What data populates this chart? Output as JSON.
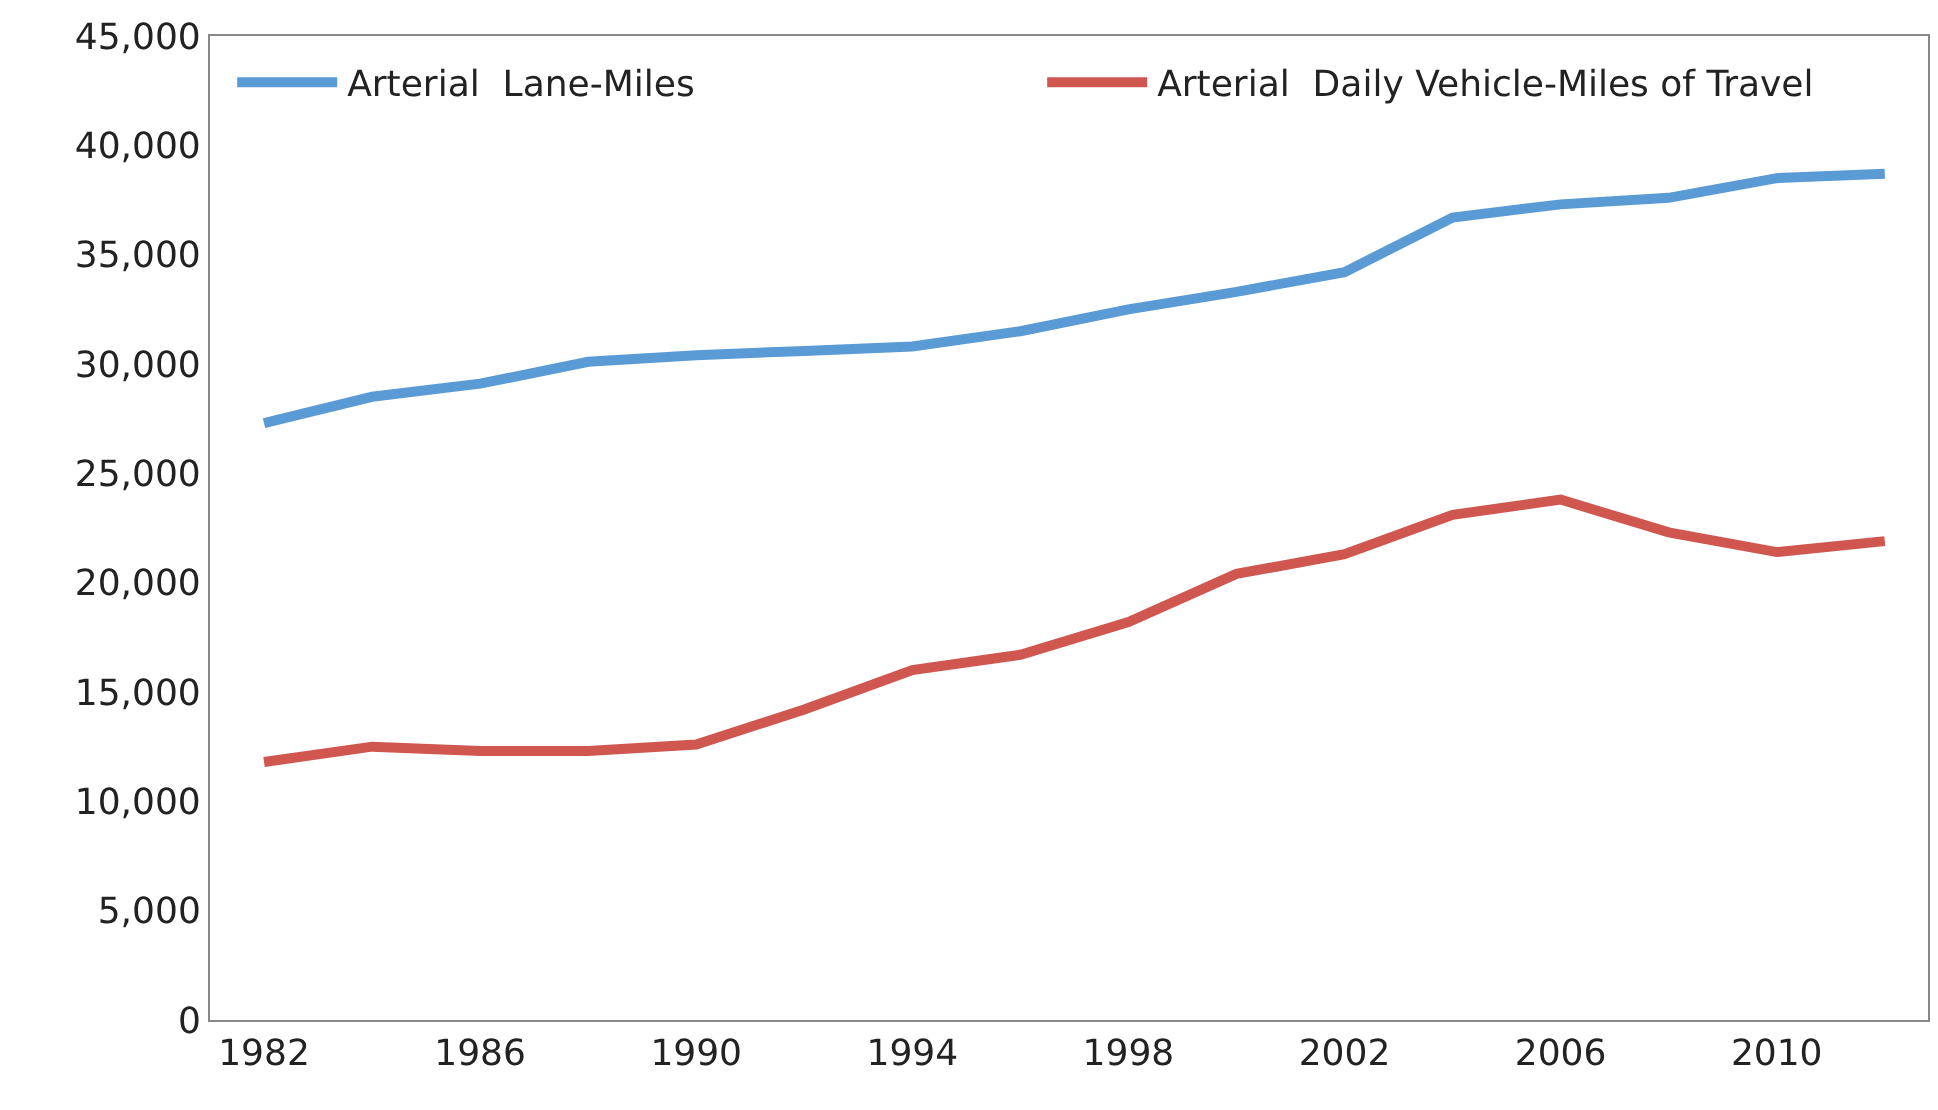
{
  "chart_data": {
    "type": "line",
    "x": [
      1982,
      1984,
      1986,
      1988,
      1990,
      1992,
      1994,
      1996,
      1998,
      2000,
      2002,
      2004,
      2006,
      2008,
      2010,
      2012
    ],
    "series": [
      {
        "name": "Arterial  Lane-Miles",
        "color": "#5b9bd5",
        "values": [
          27300,
          28500,
          29100,
          30100,
          30400,
          30600,
          30800,
          31500,
          32500,
          33300,
          34200,
          36700,
          37300,
          37600,
          38500,
          38700
        ]
      },
      {
        "name": "Arterial  Daily Vehicle-Miles of Travel",
        "color": "#d0574f",
        "values": [
          11800,
          12500,
          12300,
          12300,
          12600,
          14200,
          16000,
          16700,
          18200,
          20400,
          21300,
          23100,
          23800,
          22300,
          21400,
          21900
        ]
      }
    ],
    "xlim": [
      1981,
      2012.8
    ],
    "xticks": [
      1982,
      1986,
      1990,
      1994,
      1998,
      2002,
      2006,
      2010
    ],
    "ylim": [
      0,
      45000
    ],
    "yticks": [
      {
        "value": 0,
        "label": "0"
      },
      {
        "value": 5000,
        "label": "5,000"
      },
      {
        "value": 10000,
        "label": "10,000"
      },
      {
        "value": 15000,
        "label": "15,000"
      },
      {
        "value": 20000,
        "label": "20,000"
      },
      {
        "value": 25000,
        "label": "25,000"
      },
      {
        "value": 30000,
        "label": "30,000"
      },
      {
        "value": 35000,
        "label": "35,000"
      },
      {
        "value": 40000,
        "label": "40,000"
      },
      {
        "value": 45000,
        "label": "45,000"
      }
    ],
    "legend": "top",
    "marker": "none",
    "line_style": "solid"
  }
}
